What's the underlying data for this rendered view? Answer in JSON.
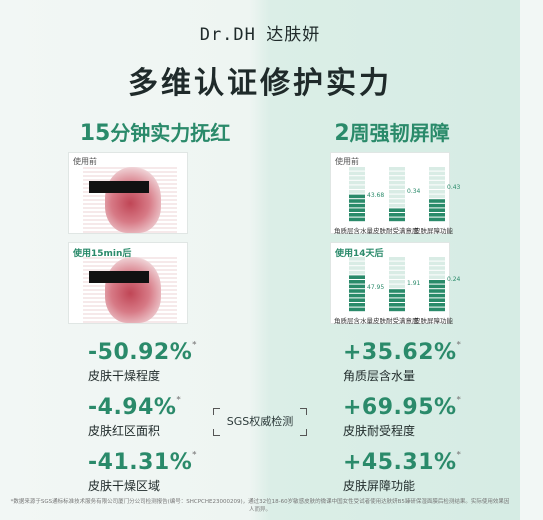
{
  "brand": {
    "en": "Dr.DH",
    "cn": "达肤妍"
  },
  "headline": "多维认证修护实力",
  "left_sub": {
    "num": "15",
    "text": "分钟实力抚红"
  },
  "right_sub": {
    "num": "2",
    "text": "周强韧屏障"
  },
  "left_panels": [
    {
      "tag": "使用前"
    },
    {
      "tag": "使用15min后"
    }
  ],
  "right_panels": [
    {
      "tag": "使用前",
      "values": [
        "43.68",
        "0.34",
        "0.43"
      ],
      "caps": [
        "角质层含水量",
        "皮肤耐受满意度",
        "皮肤屏障功能"
      ]
    },
    {
      "tag": "使用14天后",
      "values": [
        "47.95",
        "1.91",
        "0.24"
      ],
      "caps": [
        "角质层含水量",
        "皮肤耐受满意度",
        "皮肤屏障功能"
      ]
    }
  ],
  "stats_left": [
    {
      "pct": "-50.92%",
      "label": "皮肤干燥程度"
    },
    {
      "pct": "-4.94%",
      "label": "皮肤红区面积"
    },
    {
      "pct": "-41.31%",
      "label": "皮肤干燥区域"
    }
  ],
  "stats_right": [
    {
      "pct": "+35.62%",
      "label": "角质层含水量"
    },
    {
      "pct": "+69.95%",
      "label": "皮肤耐受程度"
    },
    {
      "pct": "+45.31%",
      "label": "皮肤屏障功能"
    }
  ],
  "star": "*",
  "sgs": "SGS权威检测",
  "footnote": "*数据来源于SGS通标标准技术服务有限公司厦门分公司检测报告(编号：SHCPCHE23000209)，通过32位18-60岁敏感皮肤的微课中国女性受试者使用达肤妍B5臻研保湿面膜后检测结果。实际使用效果因人而异。",
  "colors": {
    "accent": "#2a8a6a",
    "bg_left": "#f2f7f5",
    "bg_right": "#d6ece4"
  }
}
